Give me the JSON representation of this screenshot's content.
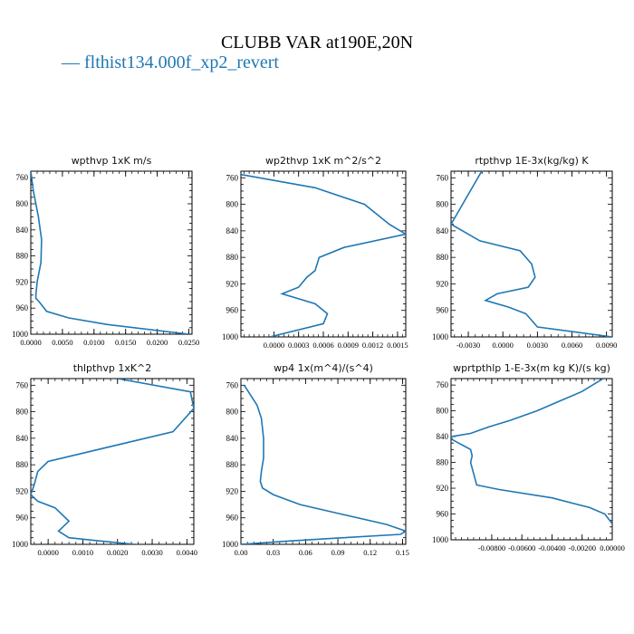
{
  "title": "CLUBB VAR at190E,20N",
  "legend": "— flthist134.000f_xp2_revert",
  "colors": {
    "series": "#1f77b4",
    "axis": "#000000"
  },
  "chart_data": [
    {
      "type": "line",
      "title": "wpthvp  1xK m/s",
      "series_name": "flthist134.000f_xp2_revert",
      "ylim": [
        1000,
        750
      ],
      "y_ticks": [
        760,
        800,
        840,
        880,
        920,
        960,
        1000
      ],
      "xlim": [
        0.0,
        0.0255
      ],
      "x_ticks": [
        0.0,
        0.005,
        0.01,
        0.015,
        0.02,
        0.025
      ],
      "x_tick_labels": [
        "0.0000",
        "0.0050",
        "0.0100",
        "0.0150",
        "0.0200",
        "0.0250"
      ],
      "x": [
        0.0,
        0.0004,
        0.0012,
        0.0017,
        0.0016,
        0.001,
        0.0008,
        0.0008,
        0.0013,
        0.0025,
        0.006,
        0.012,
        0.025
      ],
      "y": [
        750,
        780,
        820,
        855,
        890,
        920,
        940,
        945,
        950,
        965,
        975,
        985,
        1000
      ]
    },
    {
      "type": "line",
      "title": "wp2thvp  1xK m^2/s^2",
      "series_name": "flthist134.000f_xp2_revert",
      "ylim": [
        1000,
        750
      ],
      "y_ticks": [
        760,
        800,
        840,
        880,
        920,
        960,
        1000
      ],
      "xlim": [
        -0.0004,
        0.0016
      ],
      "x_ticks": [
        0.0,
        0.0003,
        0.0006,
        0.0009,
        0.0012,
        0.0015
      ],
      "x_tick_labels": [
        "0.0000",
        "0.0003",
        "0.0006",
        "0.0009",
        "0.0012",
        "0.0015"
      ],
      "x": [
        -0.0004,
        0.0005,
        0.0011,
        0.0014,
        0.0016,
        0.00085,
        0.00055,
        0.0005,
        0.0004,
        0.0003,
        0.0001,
        0.0005,
        0.00065,
        0.0006,
        -5e-05
      ],
      "y": [
        755,
        775,
        800,
        830,
        845,
        865,
        880,
        900,
        910,
        925,
        935,
        950,
        965,
        980,
        1000
      ]
    },
    {
      "type": "line",
      "title": "rtpthvp  1E-3x(kg/kg) K",
      "series_name": "flthist134.000f_xp2_revert",
      "ylim": [
        1000,
        750
      ],
      "y_ticks": [
        760,
        800,
        840,
        880,
        920,
        960,
        1000
      ],
      "xlim": [
        -0.0045,
        0.0095
      ],
      "x_ticks": [
        -0.003,
        0.0,
        0.003,
        0.006,
        0.009
      ],
      "x_tick_labels": [
        "-0.0030",
        "0.0000",
        "0.0030",
        "0.0060",
        "0.0090"
      ],
      "x": [
        -0.0015,
        -0.0025,
        -0.0035,
        -0.0045,
        -0.002,
        0.0015,
        0.0025,
        0.0028,
        0.0022,
        -0.0005,
        -0.0015,
        0.0005,
        0.002,
        0.003,
        0.0095
      ],
      "y": [
        740,
        770,
        800,
        830,
        855,
        870,
        890,
        910,
        925,
        935,
        945,
        955,
        965,
        985,
        1000
      ]
    },
    {
      "type": "line",
      "title": "thlpthvp  1xK^2",
      "series_name": "flthist134.000f_xp2_revert",
      "ylim": [
        1000,
        750
      ],
      "y_ticks": [
        760,
        800,
        840,
        880,
        920,
        960,
        1000
      ],
      "xlim": [
        -0.0005,
        0.0042
      ],
      "x_ticks": [
        0.0,
        0.001,
        0.002,
        0.003,
        0.004
      ],
      "x_tick_labels": [
        "0.0000",
        "0.0010",
        "0.0020",
        "0.0030",
        "0.0040"
      ],
      "x": [
        0.002,
        0.0041,
        0.0042,
        0.0036,
        0.0,
        -0.0003,
        -0.0004,
        -0.0005,
        -0.0003,
        0.0002,
        0.0006,
        0.0004,
        0.0003,
        0.0006,
        0.0015,
        0.0025
      ],
      "y": [
        750,
        770,
        795,
        830,
        875,
        890,
        910,
        925,
        935,
        945,
        965,
        975,
        980,
        990,
        995,
        1000
      ]
    },
    {
      "type": "line",
      "title": "wp4  1x(m^4)/(s^4)",
      "series_name": "flthist134.000f_xp2_revert",
      "ylim": [
        1000,
        750
      ],
      "y_ticks": [
        760,
        800,
        840,
        880,
        920,
        960,
        1000
      ],
      "xlim": [
        0.0,
        0.153
      ],
      "x_ticks": [
        0.0,
        0.03,
        0.06,
        0.09,
        0.12,
        0.15
      ],
      "x_tick_labels": [
        "0.00",
        "0.03",
        "0.06",
        "0.09",
        "0.12",
        "0.15"
      ],
      "x": [
        0.003,
        0.015,
        0.019,
        0.021,
        0.021,
        0.019,
        0.018,
        0.02,
        0.03,
        0.055,
        0.095,
        0.135,
        0.153,
        0.148,
        0.095,
        0.045,
        0.0
      ],
      "y": [
        760,
        790,
        810,
        840,
        870,
        890,
        905,
        915,
        925,
        940,
        955,
        970,
        980,
        985,
        990,
        995,
        1000
      ]
    },
    {
      "type": "line",
      "title": "wprtpthlp  1-E-3x(m kg K)/(s kg)",
      "series_name": "flthist134.000f_xp2_revert",
      "ylim": [
        1000,
        750
      ],
      "y_ticks": [
        760,
        800,
        840,
        880,
        920,
        960,
        1000
      ],
      "xlim": [
        -0.0107,
        0.0
      ],
      "x_ticks": [
        -0.008,
        -0.006,
        -0.004,
        -0.002,
        0.0
      ],
      "x_tick_labels": [
        "-0.00800",
        "-0.00600",
        "-0.00400",
        "-0.00200",
        "0.00000"
      ],
      "x": [
        -0.0006,
        -0.002,
        -0.0035,
        -0.005,
        -0.0068,
        -0.0082,
        -0.0094,
        -0.0107,
        -0.0106,
        -0.0094,
        -0.0093,
        -0.0094,
        -0.009,
        -0.0075,
        -0.004,
        -0.0015,
        -0.0005,
        0.0
      ],
      "y": [
        750,
        770,
        785,
        800,
        815,
        825,
        835,
        840,
        845,
        860,
        870,
        880,
        915,
        922,
        935,
        950,
        960,
        975
      ]
    }
  ]
}
